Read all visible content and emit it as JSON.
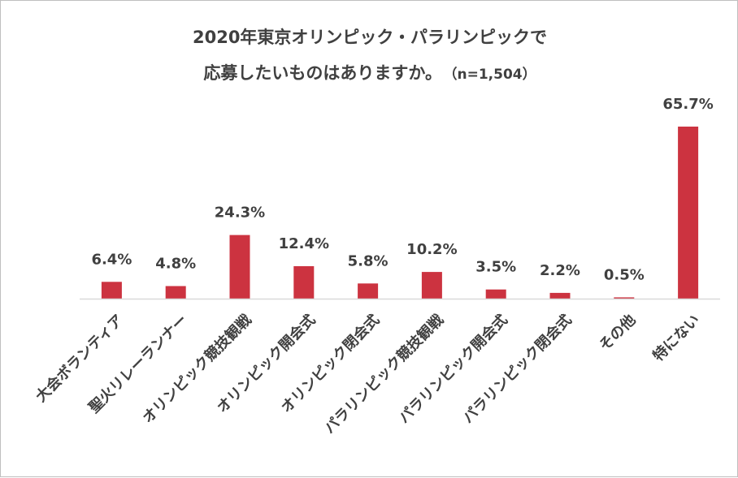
{
  "chart_data": {
    "type": "bar",
    "title_line1": "2020年東京オリンピック・パラリンピックで",
    "title_line2": "応募したいものはありますか。",
    "title_note": "（n=1,504）",
    "categories": [
      "大会ボランティア",
      "聖火リレーランナー",
      "オリンピック競技観戦",
      "オリンピック開会式",
      "オリンピック閉会式",
      "パラリンピック競技観戦",
      "パラリンピック開会式",
      "パラリンピック閉会式",
      "その他",
      "特にない"
    ],
    "values": [
      6.4,
      4.8,
      24.3,
      12.4,
      5.8,
      10.2,
      3.5,
      2.2,
      0.5,
      65.7
    ],
    "value_labels": [
      "6.4%",
      "4.8%",
      "24.3%",
      "12.4%",
      "5.8%",
      "10.2%",
      "3.5%",
      "2.2%",
      "0.5%",
      "65.7%"
    ],
    "unit": "%",
    "ylim": [
      0,
      70
    ],
    "grid": false,
    "legend": "none",
    "bar_color": "#cc3340",
    "axis_color": "#d9d9d9",
    "text_color": "#404040"
  }
}
